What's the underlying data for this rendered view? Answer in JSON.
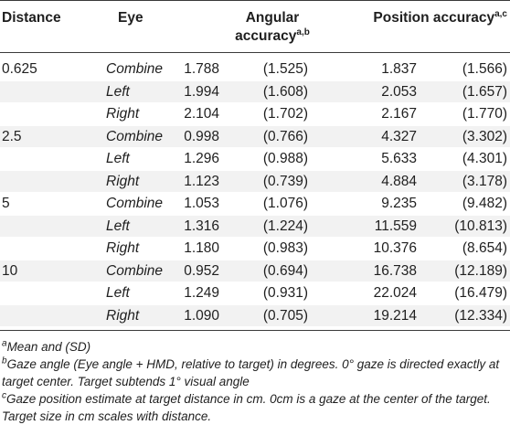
{
  "table": {
    "headers": {
      "distance": "Distance",
      "eye": "Eye",
      "angular_line1": "Angular",
      "angular_line2": "accuracy",
      "angular_sup": "a,b",
      "position": "Position accuracy",
      "position_sup": "a,c"
    },
    "rows": [
      {
        "distance": "0.625",
        "eye": "Combine",
        "ang": "1.788",
        "ang_sd": "(1.525)",
        "pos": "1.837",
        "pos_sd": "(1.566)"
      },
      {
        "distance": "",
        "eye": "Left",
        "ang": "1.994",
        "ang_sd": "(1.608)",
        "pos": "2.053",
        "pos_sd": "(1.657)"
      },
      {
        "distance": "",
        "eye": "Right",
        "ang": "2.104",
        "ang_sd": "(1.702)",
        "pos": "2.167",
        "pos_sd": "(1.770)"
      },
      {
        "distance": "2.5",
        "eye": "Combine",
        "ang": "0.998",
        "ang_sd": "(0.766)",
        "pos": "4.327",
        "pos_sd": "(3.302)"
      },
      {
        "distance": "",
        "eye": "Left",
        "ang": "1.296",
        "ang_sd": "(0.988)",
        "pos": "5.633",
        "pos_sd": "(4.301)"
      },
      {
        "distance": "",
        "eye": "Right",
        "ang": "1.123",
        "ang_sd": "(0.739)",
        "pos": "4.884",
        "pos_sd": "(3.178)"
      },
      {
        "distance": "5",
        "eye": "Combine",
        "ang": "1.053",
        "ang_sd": "(1.076)",
        "pos": "9.235",
        "pos_sd": "(9.482)"
      },
      {
        "distance": "",
        "eye": "Left",
        "ang": "1.316",
        "ang_sd": "(1.224)",
        "pos": "11.559",
        "pos_sd": "(10.813)"
      },
      {
        "distance": "",
        "eye": "Right",
        "ang": "1.180",
        "ang_sd": "(0.983)",
        "pos": "10.376",
        "pos_sd": "(8.654)"
      },
      {
        "distance": "10",
        "eye": "Combine",
        "ang": "0.952",
        "ang_sd": "(0.694)",
        "pos": "16.738",
        "pos_sd": "(12.189)"
      },
      {
        "distance": "",
        "eye": "Left",
        "ang": "1.249",
        "ang_sd": "(0.931)",
        "pos": "22.024",
        "pos_sd": "(16.479)"
      },
      {
        "distance": "",
        "eye": "Right",
        "ang": "1.090",
        "ang_sd": "(0.705)",
        "pos": "19.214",
        "pos_sd": "(12.334)"
      }
    ]
  },
  "footnotes": [
    {
      "mark": "a",
      "text": "Mean and (SD)"
    },
    {
      "mark": "b",
      "text": "Gaze angle (Eye angle + HMD, relative to target) in degrees. 0° gaze is directed exactly at target center. Target subtends 1° visual angle"
    },
    {
      "mark": "c",
      "text": "Gaze position estimate at target distance in cm. 0cm is a gaze at the center of the target. Target size in cm scales with distance."
    }
  ]
}
